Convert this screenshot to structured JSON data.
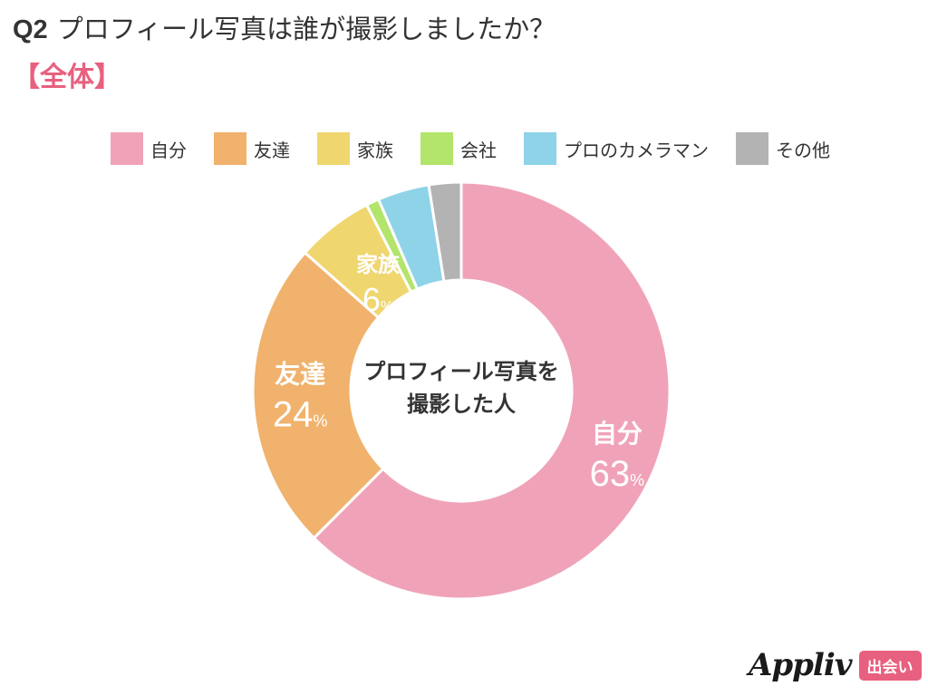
{
  "header": {
    "question_number": "Q2",
    "question_text": "プロフィール写真は誰が撮影しましたか？",
    "segment": "【全体】"
  },
  "chart_data": {
    "type": "pie",
    "style": "donut",
    "center_label_line1": "プロフィール写真を",
    "center_label_line2": "撮影した人",
    "percent_suffix": "%",
    "categories": [
      "自分",
      "友達",
      "家族",
      "会社",
      "プロのカメラマン",
      "その他"
    ],
    "values": [
      62.5,
      24.0,
      6.0,
      1.0,
      4.0,
      2.5
    ],
    "data_labels": [
      {
        "name": "自分",
        "value": "63"
      },
      {
        "name": "友達",
        "value": "24"
      },
      {
        "name": "家族",
        "value": "6"
      }
    ],
    "colors": [
      "#f0a3b8",
      "#f0b26c",
      "#f0d66f",
      "#b3e46b",
      "#8ed3e8",
      "#b3b3b3"
    ],
    "legend_position": "top"
  },
  "branding": {
    "logo_text": "Appliv",
    "badge_text": "出会い"
  }
}
